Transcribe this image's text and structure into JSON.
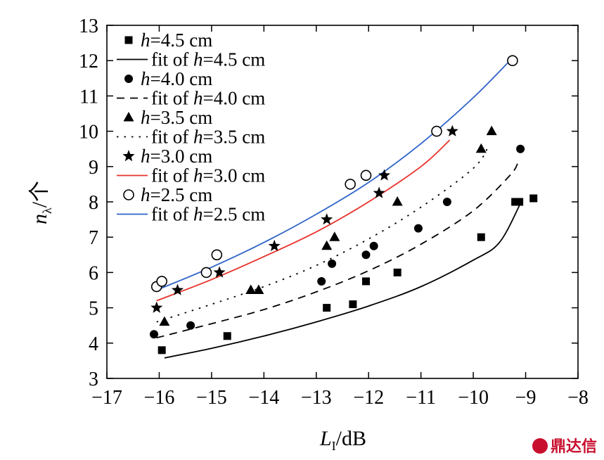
{
  "chart_data": {
    "type": "scatter",
    "xlabel": {
      "main": "L",
      "sub": "I",
      "unit": "/dB"
    },
    "ylabel": {
      "main": "n",
      "sub": "λ",
      "unit": "/个"
    },
    "xlim": [
      -17,
      -8
    ],
    "ylim": [
      3,
      13
    ],
    "xticks": [
      "−17",
      "−16",
      "−15",
      "−14",
      "−13",
      "−12",
      "−11",
      "−10",
      "−9",
      "−8"
    ],
    "yticks": [
      "3",
      "4",
      "5",
      "6",
      "7",
      "8",
      "9",
      "10",
      "11",
      "12",
      "13"
    ],
    "grid": false,
    "legend_position": "top-left",
    "series": [
      {
        "name": "h=4.5 cm",
        "var": "h",
        "rest": "=4.5 cm",
        "marker": "square",
        "points": [
          [
            -15.95,
            3.8
          ],
          [
            -14.7,
            4.2
          ],
          [
            -12.8,
            5.0
          ],
          [
            -12.3,
            5.1
          ],
          [
            -12.05,
            5.75
          ],
          [
            -11.45,
            6.0
          ],
          [
            -9.85,
            7.0
          ],
          [
            -9.2,
            8.0
          ],
          [
            -9.12,
            8.0
          ],
          [
            -8.85,
            8.1
          ]
        ]
      },
      {
        "name": "fit of h=4.5 cm",
        "pre": "fit of ",
        "var": "h",
        "rest": "=4.5 cm",
        "line": "solid",
        "color": "#000000",
        "points": [
          [
            -15.9,
            3.58
          ],
          [
            -15.0,
            3.85
          ],
          [
            -14.0,
            4.2
          ],
          [
            -13.0,
            4.6
          ],
          [
            -12.0,
            5.05
          ],
          [
            -11.0,
            5.6
          ],
          [
            -10.0,
            6.35
          ],
          [
            -9.5,
            6.85
          ],
          [
            -9.1,
            7.95
          ]
        ]
      },
      {
        "name": "h=4.0 cm",
        "var": "h",
        "rest": "=4.0 cm",
        "marker": "circle",
        "points": [
          [
            -16.1,
            4.25
          ],
          [
            -15.4,
            4.5
          ],
          [
            -12.9,
            5.75
          ],
          [
            -12.7,
            6.25
          ],
          [
            -12.05,
            6.5
          ],
          [
            -11.9,
            6.75
          ],
          [
            -11.05,
            7.25
          ],
          [
            -10.5,
            8.0
          ],
          [
            -9.1,
            9.5
          ]
        ]
      },
      {
        "name": "fit of h=4.0 cm",
        "pre": "fit of ",
        "var": "h",
        "rest": "=4.0 cm",
        "line": "dashed",
        "color": "#000000",
        "points": [
          [
            -16.05,
            4.15
          ],
          [
            -15.0,
            4.55
          ],
          [
            -14.0,
            4.95
          ],
          [
            -13.0,
            5.45
          ],
          [
            -12.0,
            6.05
          ],
          [
            -11.0,
            6.8
          ],
          [
            -10.0,
            7.75
          ],
          [
            -9.3,
            8.75
          ],
          [
            -9.15,
            9.1
          ]
        ]
      },
      {
        "name": "h=3.5 cm",
        "var": "h",
        "rest": "=3.5 cm",
        "marker": "triangle",
        "points": [
          [
            -15.9,
            4.6
          ],
          [
            -14.25,
            5.5
          ],
          [
            -14.1,
            5.5
          ],
          [
            -12.8,
            6.75
          ],
          [
            -12.65,
            7.0
          ],
          [
            -11.45,
            8.0
          ],
          [
            -9.85,
            9.5
          ],
          [
            -9.65,
            10.0
          ]
        ]
      },
      {
        "name": "fit of h=3.5 cm",
        "pre": "fit of ",
        "var": "h",
        "rest": "=3.5 cm",
        "line": "dotted",
        "color": "#000000",
        "points": [
          [
            -16.05,
            4.6
          ],
          [
            -15.0,
            5.1
          ],
          [
            -14.0,
            5.6
          ],
          [
            -13.0,
            6.2
          ],
          [
            -12.0,
            6.95
          ],
          [
            -11.0,
            7.85
          ],
          [
            -10.0,
            8.95
          ],
          [
            -9.7,
            9.6
          ]
        ]
      },
      {
        "name": "h=3.0 cm",
        "var": "h",
        "rest": "=3.0 cm",
        "marker": "star",
        "points": [
          [
            -16.05,
            5.0
          ],
          [
            -15.65,
            5.5
          ],
          [
            -14.85,
            6.0
          ],
          [
            -13.8,
            6.75
          ],
          [
            -12.8,
            7.5
          ],
          [
            -11.8,
            8.25
          ],
          [
            -11.7,
            8.75
          ],
          [
            -10.4,
            10.0
          ]
        ]
      },
      {
        "name": "fit of h=3.0 cm",
        "pre": "fit of ",
        "var": "h",
        "rest": "=3.0 cm",
        "line": "solid",
        "color": "#e8322b",
        "points": [
          [
            -16.05,
            5.2
          ],
          [
            -15.0,
            5.8
          ],
          [
            -14.0,
            6.45
          ],
          [
            -13.0,
            7.15
          ],
          [
            -12.0,
            8.0
          ],
          [
            -11.0,
            9.0
          ],
          [
            -10.45,
            9.75
          ]
        ]
      },
      {
        "name": "h=2.5 cm",
        "var": "h",
        "rest": "=2.5 cm",
        "marker": "open-circle",
        "points": [
          [
            -16.05,
            5.6
          ],
          [
            -15.95,
            5.75
          ],
          [
            -15.1,
            6.0
          ],
          [
            -14.9,
            6.5
          ],
          [
            -12.35,
            8.5
          ],
          [
            -12.05,
            8.75
          ],
          [
            -10.7,
            10.0
          ],
          [
            -9.25,
            12.0
          ]
        ]
      },
      {
        "name": "fit of h=2.5 cm",
        "pre": "fit of ",
        "var": "h",
        "rest": "=2.5 cm",
        "line": "solid",
        "color": "#2e64c8",
        "points": [
          [
            -16.05,
            5.5
          ],
          [
            -15.0,
            6.15
          ],
          [
            -14.0,
            6.85
          ],
          [
            -13.0,
            7.65
          ],
          [
            -12.0,
            8.55
          ],
          [
            -11.0,
            9.65
          ],
          [
            -10.0,
            10.95
          ],
          [
            -9.3,
            12.0
          ]
        ]
      }
    ]
  },
  "watermark": {
    "text": "鼎达信",
    "color": "#c8102e"
  }
}
